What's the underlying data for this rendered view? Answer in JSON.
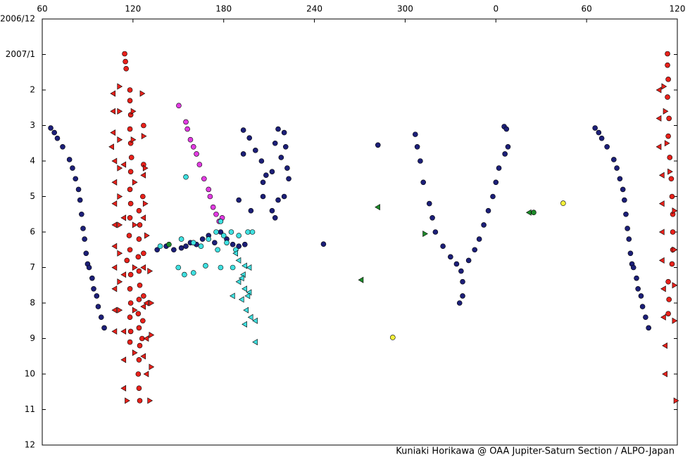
{
  "chart_data": {
    "type": "scatter",
    "credit": "Kuniaki Horikawa @ OAA Jupiter-Saturn Section / ALPO-Japan",
    "xlim": [
      60,
      480
    ],
    "xticks": [
      60,
      120,
      180,
      240,
      300,
      {
        "value": 360,
        "label": "0"
      },
      {
        "value": 420,
        "label": "60"
      },
      {
        "value": 480,
        "label": "120"
      }
    ],
    "ylim": [
      0,
      12
    ],
    "y_reversed": true,
    "yticks": [
      {
        "value": 0,
        "label": "2006/12"
      },
      {
        "value": 1,
        "label": "2007/1"
      },
      2,
      3,
      4,
      5,
      6,
      7,
      8,
      9,
      10,
      11,
      12
    ],
    "series": [
      {
        "color": "#e8211b",
        "marker": "circle",
        "x": [
          114.5,
          115,
          115.5,
          118,
          118,
          118.5,
          118,
          118.5,
          119,
          118.5,
          118,
          118.5,
          118,
          117.5,
          118,
          116,
          118.5,
          118,
          118.5,
          118,
          118.5,
          118,
          124,
          124.5,
          124,
          123.5,
          124,
          124.5,
          124,
          123.5,
          124,
          124.5,
          124,
          123.5,
          124,
          124.5,
          127,
          127,
          126.5,
          127,
          127,
          126.5,
          126,
          473.5,
          473.5,
          474,
          473.5,
          474.5,
          474,
          475,
          476,
          476.5,
          477,
          477,
          477,
          476.5,
          474,
          474.5,
          474
        ],
        "values": [
          0.98,
          1.2,
          1.4,
          2.0,
          2.3,
          2.7,
          3.1,
          3.5,
          3.9,
          4.3,
          4.8,
          5.2,
          5.6,
          6.1,
          6.5,
          6.8,
          7.2,
          7.6,
          8.0,
          8.4,
          8.8,
          9.1,
          5.4,
          5.8,
          6.2,
          6.7,
          7.1,
          7.5,
          7.9,
          8.3,
          8.7,
          9.2,
          9.6,
          10.0,
          10.4,
          10.75,
          3.0,
          4.1,
          5.0,
          6.6,
          7.8,
          8.5,
          9.0,
          0.98,
          1.3,
          1.7,
          2.2,
          2.8,
          3.3,
          3.9,
          4.5,
          5.0,
          5.5,
          6.0,
          6.5,
          6.9,
          7.4,
          7.9,
          8.3
        ]
      },
      {
        "color": "#e8211b",
        "marker": "triangle-left",
        "x": [
          107,
          107,
          107,
          106,
          108,
          108,
          108,
          108,
          108,
          108,
          108,
          108,
          108,
          114,
          114,
          114,
          114,
          114,
          114,
          127,
          127,
          127,
          127,
          127,
          129,
          129,
          129,
          468,
          468,
          468,
          470,
          470,
          470,
          470,
          471,
          471,
          472,
          472
        ],
        "values": [
          2.1,
          2.6,
          3.2,
          3.6,
          4.0,
          4.6,
          5.2,
          5.8,
          6.4,
          7.0,
          7.6,
          8.2,
          8.8,
          4.1,
          5.6,
          7.2,
          8.8,
          9.6,
          10.4,
          4.4,
          5.6,
          7.0,
          8.1,
          9.5,
          8.0,
          9.0,
          10.0,
          2.0,
          2.8,
          3.6,
          4.4,
          5.2,
          6.0,
          6.8,
          7.6,
          8.4,
          9.2,
          10.0
        ]
      },
      {
        "color": "#e8211b",
        "marker": "triangle-right",
        "x": [
          111,
          111,
          111,
          111,
          111,
          111,
          111,
          111,
          111,
          120,
          120,
          121,
          121,
          121,
          121,
          121,
          126,
          127,
          128,
          128,
          129,
          131,
          132,
          132,
          132,
          116,
          131,
          471,
          472,
          473,
          475,
          478,
          478,
          478,
          478,
          479
        ],
        "values": [
          1.9,
          2.6,
          3.4,
          4.2,
          5.0,
          5.8,
          6.6,
          7.4,
          8.2,
          2.6,
          3.4,
          4.6,
          5.8,
          7.0,
          8.2,
          9.4,
          2.1,
          3.3,
          4.2,
          5.2,
          6.1,
          7.1,
          8.0,
          8.9,
          9.8,
          10.75,
          10.75,
          1.9,
          2.6,
          3.5,
          4.3,
          5.4,
          6.5,
          7.5,
          8.5,
          10.75
        ]
      },
      {
        "color": "#1c1f78",
        "marker": "circle",
        "x": [
          65.6,
          68,
          70,
          73.5,
          78,
          80,
          82,
          84,
          85,
          86,
          87,
          88,
          89,
          90,
          91,
          93,
          94,
          96,
          97,
          99,
          101,
          425.6,
          428,
          430,
          433.5,
          438,
          440,
          442,
          444,
          445,
          446,
          447,
          448,
          449,
          450,
          451,
          453,
          454,
          456,
          457,
          459,
          461,
          136,
          142,
          147,
          152,
          155,
          158,
          162,
          166,
          170,
          174,
          178,
          182,
          186,
          190,
          194,
          193,
          197,
          201,
          193,
          205,
          208,
          212,
          206,
          190,
          198,
          206,
          212,
          214,
          216,
          216,
          220,
          221,
          222,
          223,
          220,
          214,
          218,
          282,
          246,
          306.7,
          308,
          310,
          312,
          316,
          318,
          320,
          325,
          330,
          334,
          337,
          338,
          338,
          336,
          365.5,
          367,
          368,
          366,
          362,
          360,
          358,
          355,
          352,
          349,
          346,
          342
        ],
        "values": [
          3.07,
          3.2,
          3.36,
          3.6,
          3.96,
          4.2,
          4.5,
          4.8,
          5.1,
          5.5,
          5.9,
          6.2,
          6.6,
          6.9,
          7.0,
          7.3,
          7.6,
          7.8,
          8.1,
          8.4,
          8.7,
          3.07,
          3.2,
          3.36,
          3.6,
          3.96,
          4.2,
          4.5,
          4.8,
          5.1,
          5.5,
          5.9,
          6.2,
          6.6,
          6.9,
          7.0,
          7.3,
          7.6,
          7.8,
          8.1,
          8.4,
          8.7,
          6.5,
          6.4,
          6.5,
          6.45,
          6.4,
          6.3,
          6.35,
          6.2,
          6.1,
          6.3,
          6.0,
          6.2,
          6.35,
          6.4,
          6.35,
          3.13,
          3.35,
          3.7,
          3.8,
          4.0,
          4.4,
          4.3,
          4.6,
          5.1,
          5.4,
          5.0,
          5.4,
          5.6,
          5.1,
          3.1,
          3.2,
          3.6,
          4.2,
          4.5,
          5.0,
          3.5,
          3.9,
          3.55,
          6.34,
          3.25,
          3.6,
          4.0,
          4.6,
          5.2,
          5.6,
          6.0,
          6.4,
          6.7,
          6.9,
          7.1,
          7.4,
          7.8,
          8.0,
          3.03,
          3.1,
          3.6,
          3.8,
          4.2,
          4.6,
          5.0,
          5.4,
          5.8,
          6.2,
          6.5,
          6.8
        ]
      },
      {
        "color": "#e23be2",
        "marker": "circle",
        "x": [
          150.3,
          155,
          156,
          158,
          160,
          162,
          164,
          167,
          170,
          171,
          173,
          175,
          177,
          179
        ],
        "values": [
          2.44,
          2.9,
          3.1,
          3.4,
          3.6,
          3.8,
          4.1,
          4.5,
          4.8,
          5.0,
          5.3,
          5.5,
          5.7,
          5.6
        ]
      },
      {
        "color": "#3fe0e0",
        "marker": "circle",
        "x": [
          155,
          138,
          152,
          160,
          165,
          170,
          175,
          178,
          180,
          182,
          185,
          188,
          190,
          196,
          199,
          150,
          160,
          168,
          178,
          186,
          154,
          176
        ],
        "values": [
          4.45,
          6.4,
          6.2,
          6.3,
          6.4,
          6.2,
          6.0,
          5.7,
          6.1,
          6.3,
          6.0,
          6.5,
          6.1,
          6.0,
          6.0,
          7.0,
          7.15,
          6.95,
          7.0,
          7.0,
          7.2,
          6.5
        ]
      },
      {
        "color": "#3fe0e0",
        "marker": "triangle-left",
        "x": [
          190,
          194,
          197,
          193,
          190,
          194,
          186,
          192,
          197,
          195,
          198,
          194,
          201,
          201,
          188,
          192,
          196
        ],
        "values": [
          6.8,
          6.95,
          7.0,
          7.2,
          7.4,
          7.6,
          7.8,
          7.9,
          7.7,
          8.2,
          8.4,
          8.6,
          8.5,
          9.1,
          6.6,
          7.3,
          7.8
        ]
      },
      {
        "color": "#1d8a2a",
        "marker": "circle",
        "x": [
          143.8,
          385
        ],
        "values": [
          6.35,
          5.45
        ]
      },
      {
        "color": "#1d8a2a",
        "marker": "triangle-left",
        "x": [
          282,
          271,
          382
        ],
        "values": [
          5.3,
          7.35,
          5.45
        ]
      },
      {
        "color": "#1d8a2a",
        "marker": "triangle-right",
        "x": [
          313
        ],
        "values": [
          6.05
        ]
      },
      {
        "color": "#f4f03a",
        "marker": "circle",
        "x": [
          291.8,
          404.5
        ],
        "values": [
          8.97,
          5.19
        ]
      }
    ]
  }
}
